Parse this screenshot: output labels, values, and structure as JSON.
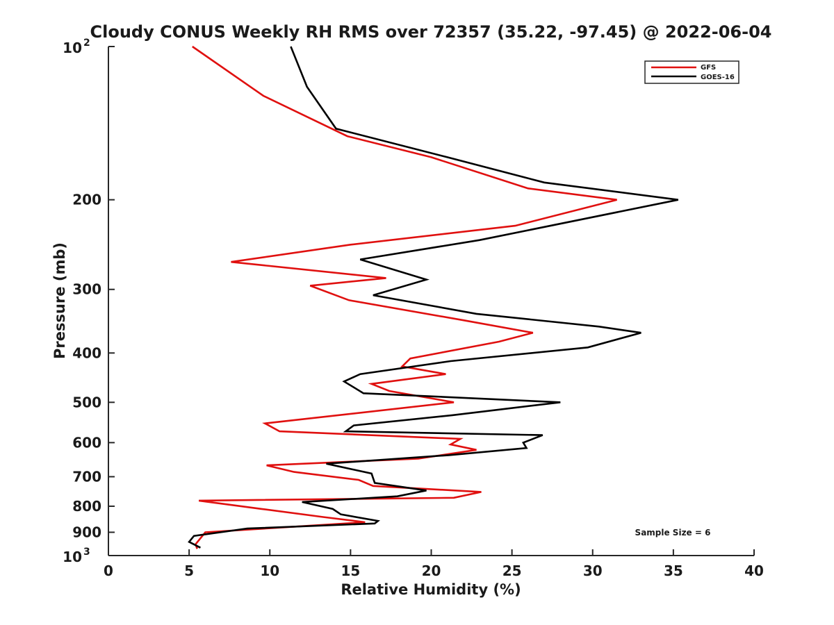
{
  "chart_data": {
    "type": "line",
    "title": "Cloudy CONUS Weekly RH RMS over 72357 (35.22, -97.45) @ 2022-06-04",
    "xlabel": "Relative Humidity (%)",
    "ylabel": "Pressure (mb)",
    "xlim": [
      0,
      40
    ],
    "ylim": [
      100,
      1000
    ],
    "y_scale": "log",
    "y_reversed": true,
    "grid": false,
    "legend_position": "top-right",
    "x_ticks": [
      0,
      5,
      10,
      15,
      20,
      25,
      30,
      35,
      40
    ],
    "y_ticks": [
      {
        "value": 100,
        "base": "10",
        "exp": "2"
      },
      {
        "value": 200,
        "label": "200"
      },
      {
        "value": 300,
        "label": "300"
      },
      {
        "value": 400,
        "label": "400"
      },
      {
        "value": 500,
        "label": "500"
      },
      {
        "value": 600,
        "label": "600"
      },
      {
        "value": 700,
        "label": "700"
      },
      {
        "value": 800,
        "label": "800"
      },
      {
        "value": 900,
        "label": "900"
      },
      {
        "value": 1000,
        "base": "10",
        "exp": "3"
      }
    ],
    "annotation": "Sample Size = 6",
    "series": [
      {
        "name": "GFS",
        "color": "#e0100f",
        "points": [
          [
            5.2,
            100
          ],
          [
            9.6,
            125
          ],
          [
            14.8,
            150
          ],
          [
            20,
            165
          ],
          [
            26,
            190
          ],
          [
            31.5,
            200
          ],
          [
            25.2,
            225
          ],
          [
            15,
            245
          ],
          [
            7.6,
            265
          ],
          [
            17.2,
            285
          ],
          [
            12.5,
            295
          ],
          [
            14.9,
            315
          ],
          [
            22,
            345
          ],
          [
            26.3,
            365
          ],
          [
            24.2,
            380
          ],
          [
            18.7,
            410
          ],
          [
            18.2,
            425
          ],
          [
            20.9,
            440
          ],
          [
            16.3,
            460
          ],
          [
            17.4,
            475
          ],
          [
            21.4,
            500
          ],
          [
            9.7,
            550
          ],
          [
            10.6,
            570
          ],
          [
            21.8,
            590
          ],
          [
            21.2,
            605
          ],
          [
            22.8,
            620
          ],
          [
            19.2,
            645
          ],
          [
            9.8,
            665
          ],
          [
            11.5,
            685
          ],
          [
            15.5,
            710
          ],
          [
            16.4,
            730
          ],
          [
            23.1,
            750
          ],
          [
            21.4,
            770
          ],
          [
            5.6,
            780
          ],
          [
            9.5,
            810
          ],
          [
            13.3,
            840
          ],
          [
            15.9,
            860
          ],
          [
            6,
            900
          ],
          [
            5.4,
            950
          ],
          [
            5.5,
            970
          ]
        ]
      },
      {
        "name": "GOES-16",
        "color": "#000000",
        "points": [
          [
            11.3,
            100
          ],
          [
            12.3,
            120
          ],
          [
            14.1,
            145
          ],
          [
            21,
            165
          ],
          [
            27,
            185
          ],
          [
            35.3,
            200
          ],
          [
            23,
            240
          ],
          [
            15.6,
            262
          ],
          [
            19.7,
            287
          ],
          [
            16.4,
            308
          ],
          [
            22.8,
            335
          ],
          [
            30.4,
            355
          ],
          [
            33,
            365
          ],
          [
            29.7,
            390
          ],
          [
            21.2,
            415
          ],
          [
            15.6,
            440
          ],
          [
            14.6,
            455
          ],
          [
            15.8,
            480
          ],
          [
            28,
            500
          ],
          [
            21.3,
            530
          ],
          [
            15.2,
            555
          ],
          [
            14.7,
            570
          ],
          [
            26.9,
            580
          ],
          [
            25.7,
            600
          ],
          [
            25.9,
            615
          ],
          [
            21.1,
            635
          ],
          [
            13.5,
            660
          ],
          [
            16.3,
            690
          ],
          [
            16.5,
            720
          ],
          [
            19.7,
            745
          ],
          [
            17.9,
            765
          ],
          [
            12,
            785
          ],
          [
            13.9,
            810
          ],
          [
            14.4,
            830
          ],
          [
            16.7,
            855
          ],
          [
            16.5,
            865
          ],
          [
            8.6,
            885
          ],
          [
            5.3,
            915
          ],
          [
            5,
            940
          ],
          [
            5.7,
            965
          ]
        ]
      }
    ]
  }
}
